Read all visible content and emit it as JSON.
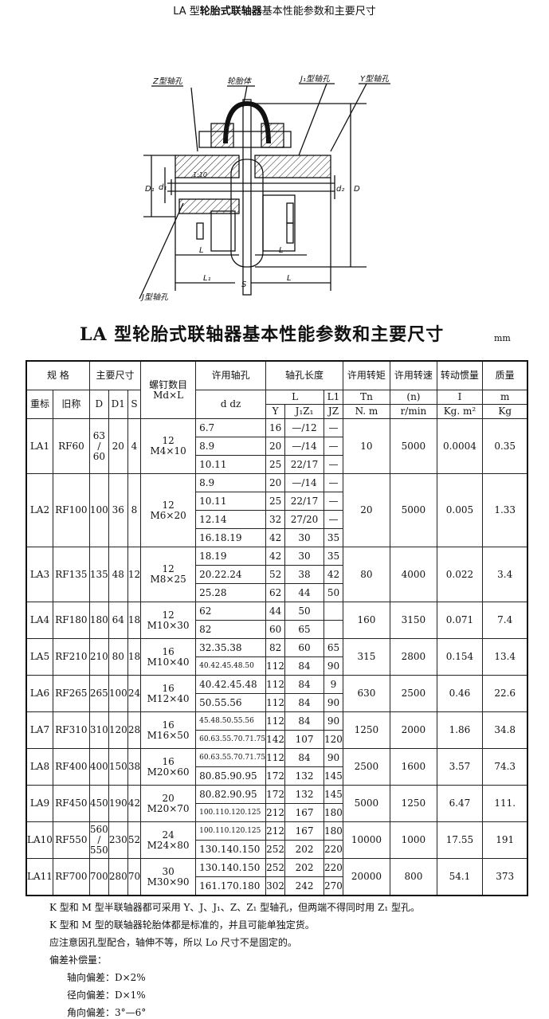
{
  "page_title": {
    "prefix": "LA 型",
    "bold": "轮胎式联轴器",
    "suffix": "基本性能参数和主要尺寸"
  },
  "drawing_labels": {
    "z_hole": "Z型轴孔",
    "tire": "轮胎体",
    "j1_hole": "J₁型轴孔",
    "y_hole": "Y型轴孔",
    "j_hole": "J型轴孔",
    "taper": "1:10",
    "D": "D",
    "D1": "D₁",
    "d1": "d₁",
    "dz": "d₂",
    "L": "L",
    "L1": "L₁",
    "S": "S"
  },
  "main_title": "LA 型轮胎式联轴器基本性能参数和主要尺寸",
  "unit": "mm",
  "headers": {
    "spec": "规 格",
    "main_dims": "主要尺寸",
    "screws": "螺钉数目",
    "screws_unit": "Md×L",
    "bore": "许用轴孔",
    "bore_sub": "d  dz",
    "bore_len": "轴孔长度",
    "torque": "许用转矩",
    "speed": "许用转速",
    "inertia": "转动惯量",
    "mass": "质量",
    "new_name": "重标",
    "old_name": "旧称",
    "D": "D",
    "D1": "D1",
    "S": "S",
    "L": "L",
    "L1": "L1",
    "Y": "Y",
    "J1Z1": "J₁Z₁",
    "JZ": "JZ",
    "Tn": "Tn",
    "n": "(n)",
    "I": "I",
    "m": "m",
    "Tn_unit": "N. m",
    "n_unit": "r/min",
    "I_unit": "Kg. m²",
    "m_unit": "Kg"
  },
  "rows": [
    {
      "new": "LA1",
      "old": "RF60",
      "D": "63 / 60",
      "D1": "20",
      "S": "4",
      "screw_n": "12",
      "screw": "M4×10",
      "Tn": "10",
      "n": "5000",
      "I": "0.0004",
      "m": "0.35",
      "bores": [
        [
          "6.7",
          "16",
          "—/12",
          "—"
        ],
        [
          "8.9",
          "20",
          "—/14",
          "—"
        ],
        [
          "10.11",
          "25",
          "22/17",
          "—"
        ]
      ]
    },
    {
      "new": "LA2",
      "old": "RF100",
      "D": "100",
      "D1": "36",
      "S": "8",
      "screw_n": "12",
      "screw": "M6×20",
      "Tn": "20",
      "n": "5000",
      "I": "0.005",
      "m": "1.33",
      "bores": [
        [
          "8.9",
          "20",
          "—/14",
          "—"
        ],
        [
          "10.11",
          "25",
          "22/17",
          "—"
        ],
        [
          "12.14",
          "32",
          "27/20",
          "—"
        ],
        [
          "16.18.19",
          "42",
          "30",
          "35"
        ]
      ]
    },
    {
      "new": "LA3",
      "old": "RF135",
      "D": "135",
      "D1": "48",
      "S": "12",
      "screw_n": "12",
      "screw": "M8×25",
      "Tn": "80",
      "n": "4000",
      "I": "0.022",
      "m": "3.4",
      "bores": [
        [
          "18.19",
          "42",
          "30",
          "35"
        ],
        [
          "20.22.24",
          "52",
          "38",
          "42"
        ],
        [
          "25.28",
          "62",
          "44",
          "50"
        ]
      ]
    },
    {
      "new": "LA4",
      "old": "RF180",
      "D": "180",
      "D1": "64",
      "S": "18",
      "screw_n": "12",
      "screw": "M10×30",
      "Tn": "160",
      "n": "3150",
      "I": "0.071",
      "m": "7.4",
      "bores": [
        [
          "62",
          "44",
          "50",
          ""
        ],
        [
          "82",
          "60",
          "65",
          ""
        ]
      ]
    },
    {
      "new": "LA5",
      "old": "RF210",
      "D": "210",
      "D1": "80",
      "S": "18",
      "screw_n": "16",
      "screw": "M10×40",
      "Tn": "315",
      "n": "2800",
      "I": "0.154",
      "m": "13.4",
      "bores": [
        [
          "32.35.38",
          "82",
          "60",
          "65"
        ],
        [
          "40.42.45.48.50",
          "112",
          "84",
          "90"
        ]
      ]
    },
    {
      "new": "LA6",
      "old": "RF265",
      "D": "265",
      "D1": "100",
      "S": "24",
      "screw_n": "16",
      "screw": "M12×40",
      "Tn": "630",
      "n": "2500",
      "I": "0.46",
      "m": "22.6",
      "bores": [
        [
          "40.42.45.48",
          "112",
          "84",
          "9"
        ],
        [
          "50.55.56",
          "112",
          "84",
          "90"
        ]
      ]
    },
    {
      "new": "LA7",
      "old": "RF310",
      "D": "310",
      "D1": "120",
      "S": "28",
      "screw_n": "16",
      "screw": "M16×50",
      "Tn": "1250",
      "n": "2000",
      "I": "1.86",
      "m": "34.8",
      "bores": [
        [
          "45.48.50.55.56",
          "112",
          "84",
          "90"
        ],
        [
          "60.63.55.70.71.75",
          "142",
          "107",
          "120"
        ]
      ]
    },
    {
      "new": "LA8",
      "old": "RF400",
      "D": "400",
      "D1": "150",
      "S": "38",
      "screw_n": "16",
      "screw": "M20×60",
      "Tn": "2500",
      "n": "1600",
      "I": "3.57",
      "m": "74.3",
      "bores": [
        [
          "60.63.55.70.71.75",
          "112",
          "84",
          "90"
        ],
        [
          "80.85.90.95",
          "172",
          "132",
          "145"
        ]
      ]
    },
    {
      "new": "LA9",
      "old": "RF450",
      "D": "450",
      "D1": "190",
      "S": "42",
      "screw_n": "20",
      "screw": "M20×70",
      "Tn": "5000",
      "n": "1250",
      "I": "6.47",
      "m": "111.",
      "bores": [
        [
          "80.82.90.95",
          "172",
          "132",
          "145"
        ],
        [
          "100.110.120.125",
          "212",
          "167",
          "180"
        ]
      ]
    },
    {
      "new": "LA10",
      "old": "RF550",
      "D": "560 / 550",
      "D1": "230",
      "S": "52",
      "screw_n": "24",
      "screw": "M24×80",
      "Tn": "10000",
      "n": "1000",
      "I": "17.55",
      "m": "191",
      "bores": [
        [
          "100.110.120.125",
          "212",
          "167",
          "180"
        ],
        [
          "130.140.150",
          "252",
          "202",
          "220"
        ]
      ]
    },
    {
      "new": "LA11",
      "old": "RF700",
      "D": "700",
      "D1": "280",
      "S": "70",
      "screw_n": "30",
      "screw": "M30×90",
      "Tn": "20000",
      "n": "800",
      "I": "54.1",
      "m": "373",
      "bores": [
        [
          "130.140.150",
          "252",
          "202",
          "220"
        ],
        [
          "161.170.180",
          "302",
          "242",
          "270"
        ]
      ]
    }
  ],
  "notes": [
    "K 型和 M 型半联轴器都可采用 Y、J、J₁、Z、Z₁ 型轴孔，但两端不得同时用 Z₁ 型孔。",
    "K 型和 M 型的联轴器轮胎体都是标准的，并且可能单独定货。",
    "应注意因孔型配合，轴伸不等，所以 Lo 尺寸不是固定的。",
    "偏差补偿量："
  ],
  "deviations": [
    "轴向偏差：D×2%",
    "径向偏差：D×1%",
    "角向偏差：3°—6°"
  ]
}
